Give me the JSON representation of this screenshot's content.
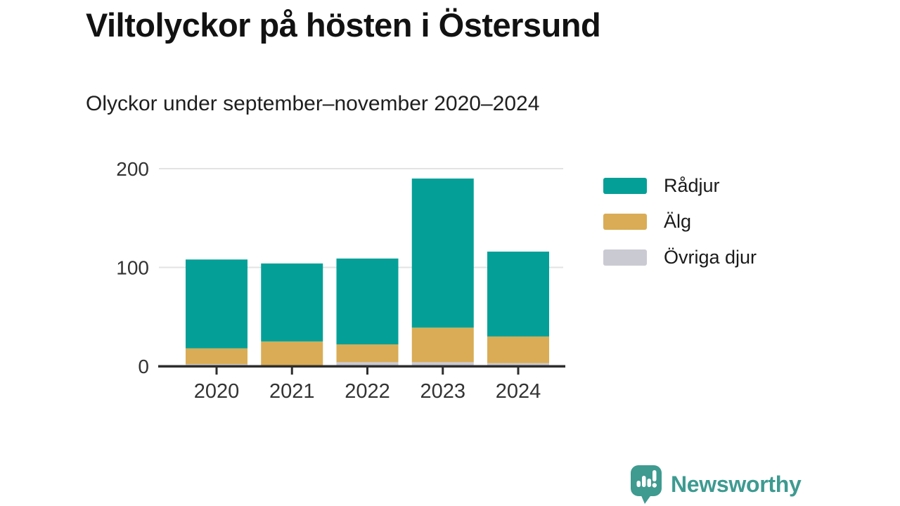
{
  "title": "Viltolyckor på hösten i Östersund",
  "subtitle": "Olyckor under september–november 2020–2024",
  "chart_data": {
    "type": "bar",
    "stacked": true,
    "title": "Viltolyckor på hösten i Östersund",
    "subtitle": "Olyckor under september–november 2020–2024",
    "categories": [
      "2020",
      "2021",
      "2022",
      "2023",
      "2024"
    ],
    "series": [
      {
        "name": "Rådjur",
        "color": "#04a098",
        "values": [
          90,
          79,
          87,
          151,
          86
        ]
      },
      {
        "name": "Älg",
        "color": "#d9ac55",
        "values": [
          16,
          24,
          18,
          35,
          27
        ]
      },
      {
        "name": "Övriga djur",
        "color": "#cacad3",
        "values": [
          2,
          1,
          4,
          4,
          3
        ]
      }
    ],
    "stack_order_bottom_to_top": [
      "Övriga djur",
      "Älg",
      "Rådjur"
    ],
    "xlabel": "",
    "ylabel": "",
    "ylim": [
      0,
      200
    ],
    "yticks": [
      0,
      100,
      200
    ],
    "grid": "horizontal",
    "legend_position": "right",
    "axis_color": "#2e2e2e",
    "grid_color": "#e3e3e3",
    "tick_text_color": "#333333"
  },
  "footer": {
    "brand": "Newsworthy",
    "brand_color": "#3e9a91",
    "logo_icon": "speech-bubble-bar-chart-exclamation"
  }
}
